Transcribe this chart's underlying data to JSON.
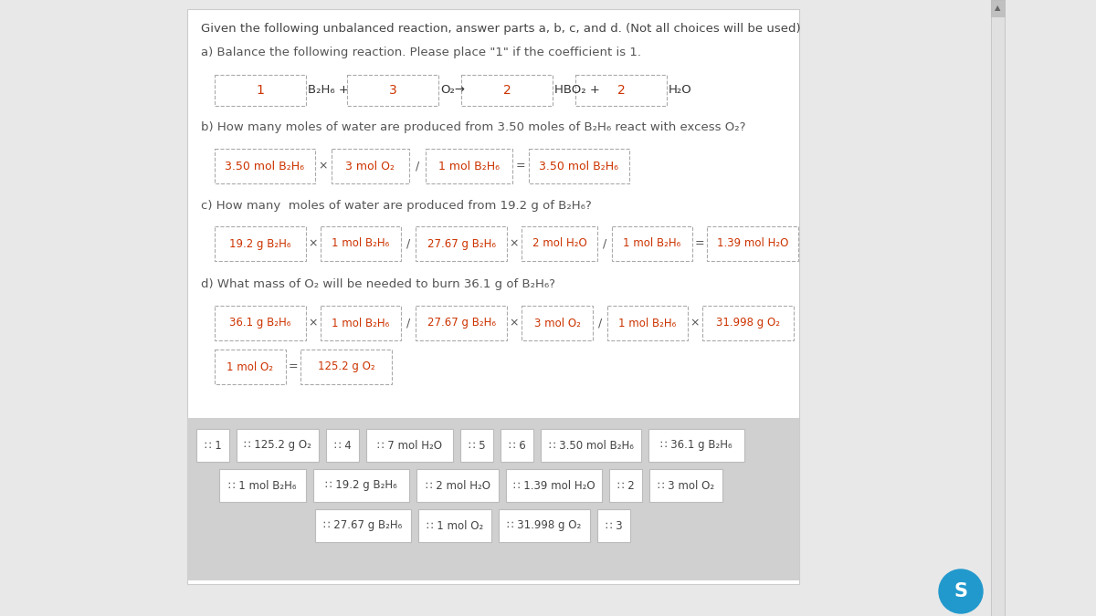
{
  "bg_color": "#e8e8e8",
  "panel_bg": "#ffffff",
  "choices_bg": "#d0d0d0",
  "title_text": "Given the following unbalanced reaction, answer parts a, b, c, and d. (Not all choices will be used)",
  "part_a_label": "a) Balance the following reaction. Please place \"1\" if the coefficient is 1.",
  "part_b_label": "b) How many moles of water are produced from 3.50 moles of B₂H₆ react with excess O₂?",
  "part_c_label": "c) How many  moles of water are produced from 19.2 g of B₂H₆?",
  "part_d_label": "d) What mass of O₂ will be needed to burn 36.1 g of B₂H₆?",
  "text_color": "#555555",
  "box_text_color": "#cc3300",
  "reaction_vals": [
    "1",
    "3",
    "2",
    "2"
  ],
  "reaction_lbls": [
    "B₂H₆ +",
    "O₂→",
    "HBO₂ +",
    "H₂O"
  ],
  "part_b_boxes": [
    "3.50 mol B₂H₆",
    "3 mol O₂",
    "1 mol B₂H₆",
    "3.50 mol B₂H₆"
  ],
  "part_b_ops": [
    "×",
    "/",
    "="
  ],
  "part_c_boxes": [
    "19.2 g B₂H₆",
    "1 mol B₂H₆",
    "27.67 g B₂H₆",
    "2 mol H₂O",
    "1 mol B₂H₆",
    "1.39 mol H₂O"
  ],
  "part_c_ops": [
    "×",
    "/",
    "×",
    "/",
    "="
  ],
  "part_d_r1_boxes": [
    "36.1 g B₂H₆",
    "1 mol B₂H₆",
    "27.67 g B₂H₆",
    "3 mol O₂",
    "1 mol B₂H₆",
    "31.998 g O₂"
  ],
  "part_d_r1_ops": [
    "×",
    "/",
    "×",
    "/",
    "×"
  ],
  "part_d_r2_boxes": [
    "1 mol O₂",
    "125.2 g O₂"
  ],
  "part_d_r2_ops": [
    "="
  ],
  "choices_row1": [
    "∷ 1",
    "∷ 125.2 g O₂",
    "∷ 4",
    "∷ 7 mol H₂O",
    "∷ 5",
    "∷ 6",
    "∷ 3.50 mol B₂H₆",
    "∷ 36.1 g B₂H₆"
  ],
  "choices_row2": [
    "∷ 1 mol B₂H₆",
    "∷ 19.2 g B₂H₆",
    "∷ 2 mol H₂O",
    "∷ 1.39 mol H₂O",
    "∷ 2",
    "∷ 3 mol O₂"
  ],
  "choices_row3": [
    "∷ 27.67 g B₂H₆",
    "∷ 1 mol O₂",
    "∷ 31.998 g O₂",
    "∷ 3"
  ],
  "s_button_color": "#2299cc"
}
